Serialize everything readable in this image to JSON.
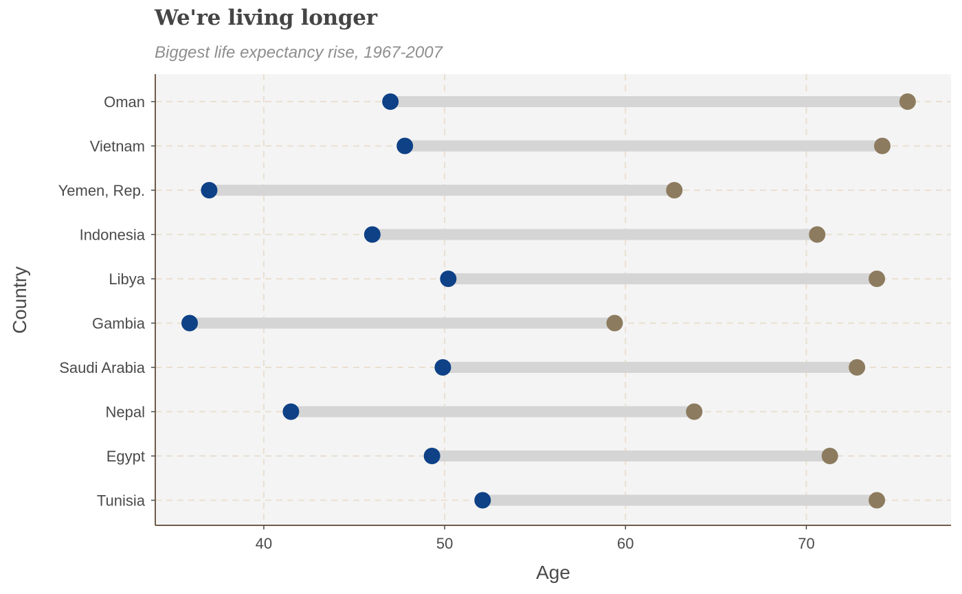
{
  "chart_data": {
    "type": "dumbbell",
    "title": "We're living longer",
    "subtitle": "Biggest life expectancy rise, 1967-2007",
    "xlabel": "Age",
    "ylabel": "Country",
    "xlim": [
      34,
      78
    ],
    "xticks": [
      40,
      50,
      60,
      70
    ],
    "grid": "dashed",
    "colors": {
      "start": "#0e4186",
      "end": "#8d7b5f",
      "segment": "#d5d5d5",
      "panel": "#f4f4f4",
      "grid": "#eadfd1",
      "axis": "#6f5c49"
    },
    "categories": [
      "Oman",
      "Vietnam",
      "Yemen, Rep.",
      "Indonesia",
      "Libya",
      "Gambia",
      "Saudi Arabia",
      "Nepal",
      "Egypt",
      "Tunisia"
    ],
    "series": [
      {
        "values": [
          47.0,
          47.8,
          36.98,
          46.0,
          50.2,
          35.9,
          49.9,
          41.5,
          49.3,
          52.1
        ]
      },
      {
        "values": [
          75.6,
          74.2,
          62.7,
          70.6,
          73.9,
          59.4,
          72.8,
          63.8,
          71.3,
          73.9
        ]
      }
    ]
  }
}
